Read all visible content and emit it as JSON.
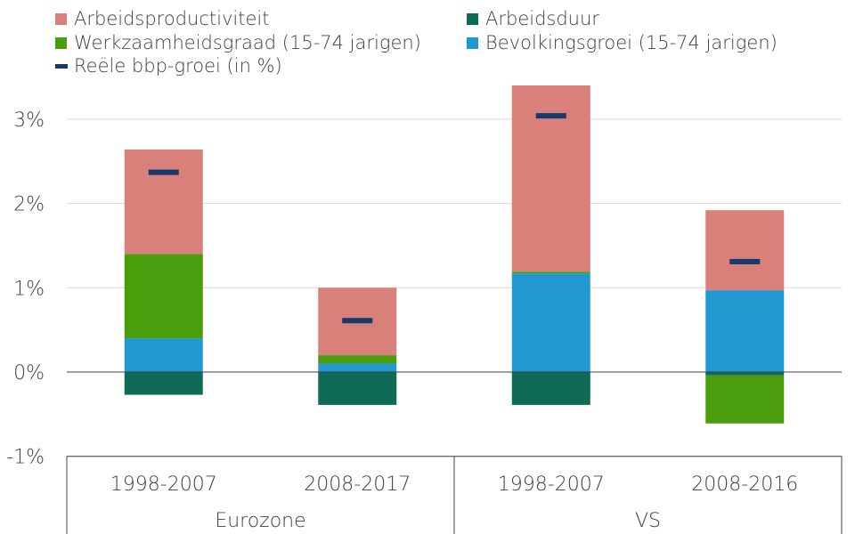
{
  "legend": {
    "productiviteit": "Arbeidsproductiviteit",
    "arbeidsduur": "Arbeidsduur",
    "werkzaamheid": "Werkzaamheidsgraad (15-74 jarigen)",
    "bevolking": "Bevolkingsgroei (15-74 jarigen)",
    "bbp": "Reële bbp-groei (in %)"
  },
  "colors": {
    "productiviteit": "#d9807a",
    "arbeidsduur": "#0f6b55",
    "werkzaamheid": "#4a9e0e",
    "bevolking": "#2199d0",
    "bbp": "#153a6b",
    "axis": "#404040",
    "grid": "#d9d9d9"
  },
  "chart_data": {
    "type": "bar",
    "stacked": true,
    "categories": [
      "1998-2007",
      "2008-2017",
      "1998-2007",
      "2008-2016"
    ],
    "groups": [
      {
        "label": "Eurozone",
        "categories": [
          "1998-2007",
          "2008-2017"
        ]
      },
      {
        "label": "VS",
        "categories": [
          "1998-2007",
          "2008-2016"
        ]
      }
    ],
    "series": [
      {
        "name": "Arbeidsduur",
        "key": "arbeidsduur",
        "values": [
          -0.27,
          -0.39,
          -0.39,
          -0.04
        ]
      },
      {
        "name": "Bevolkingsgroei (15-74 jarigen)",
        "key": "bevolking",
        "values": [
          0.4,
          0.1,
          1.17,
          0.97
        ]
      },
      {
        "name": "Werkzaamheidsgraad (15-74 jarigen)",
        "key": "werkzaamheid",
        "values": [
          1.0,
          0.1,
          0.02,
          -0.57
        ]
      },
      {
        "name": "Arbeidsproductiviteit",
        "key": "productiviteit",
        "values": [
          1.24,
          0.8,
          2.21,
          0.95
        ]
      }
    ],
    "markers": {
      "name": "Reële bbp-groei (in %)",
      "key": "bbp",
      "values": [
        2.37,
        0.61,
        3.04,
        1.31
      ]
    },
    "yticks": [
      -1,
      0,
      1,
      2,
      3
    ],
    "ytick_labels": [
      "-1%",
      "0%",
      "1%",
      "2%",
      "3%"
    ],
    "ylim": [
      -1,
      3.4
    ],
    "grid": true,
    "legend_position": "top"
  }
}
